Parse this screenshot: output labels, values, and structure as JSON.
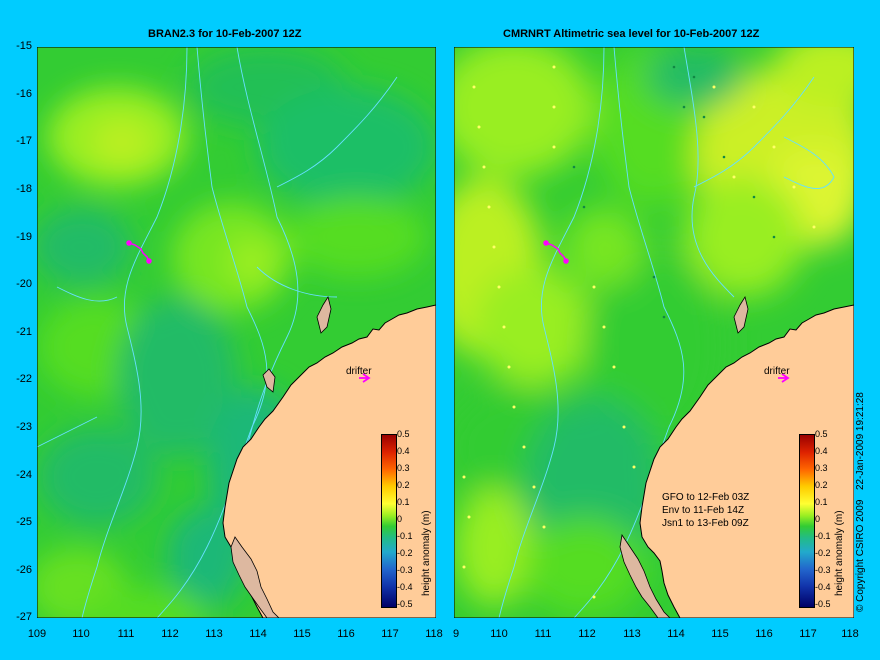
{
  "left_panel": {
    "title": "BRAN2.3 for 10-Feb-2007 12Z",
    "drifter_label": "drifter"
  },
  "right_panel": {
    "title": "CMRNRT Altimetric sea level  for 10-Feb-2007 12Z",
    "drifter_label": "drifter",
    "notes": [
      "GFO to 12-Feb 03Z",
      "Env to 11-Feb 14Z",
      "Jsn1 to 13-Feb 09Z"
    ]
  },
  "y_ticks": [
    "-15",
    "-16",
    "-17",
    "-18",
    "-19",
    "-20",
    "-21",
    "-22",
    "-23",
    "-24",
    "-25",
    "-26",
    "-27"
  ],
  "x_ticks_left": [
    "109",
    "110",
    "111",
    "112",
    "113",
    "114",
    "115",
    "116",
    "117",
    "118"
  ],
  "x_ticks_right": [
    "9",
    "110",
    "111",
    "112",
    "113",
    "114",
    "115",
    "116",
    "117",
    "118"
  ],
  "colorbar": {
    "label": "height anomaly (m)",
    "ticks": [
      "0.5",
      "0.4",
      "0.3",
      "0.2",
      "0.1",
      "0",
      "-0.1",
      "-0.2",
      "-0.3",
      "-0.4",
      "-0.5"
    ]
  },
  "copyright": "© Copyright CSIRO 2009",
  "timestamp": "22-Jan-2009 19:21:28",
  "colors": {
    "background": "#00ccff",
    "land": "#ffcc99",
    "coast_outline": "#000000",
    "contour": "#66e0ff",
    "drifter": "#ff00ff"
  }
}
